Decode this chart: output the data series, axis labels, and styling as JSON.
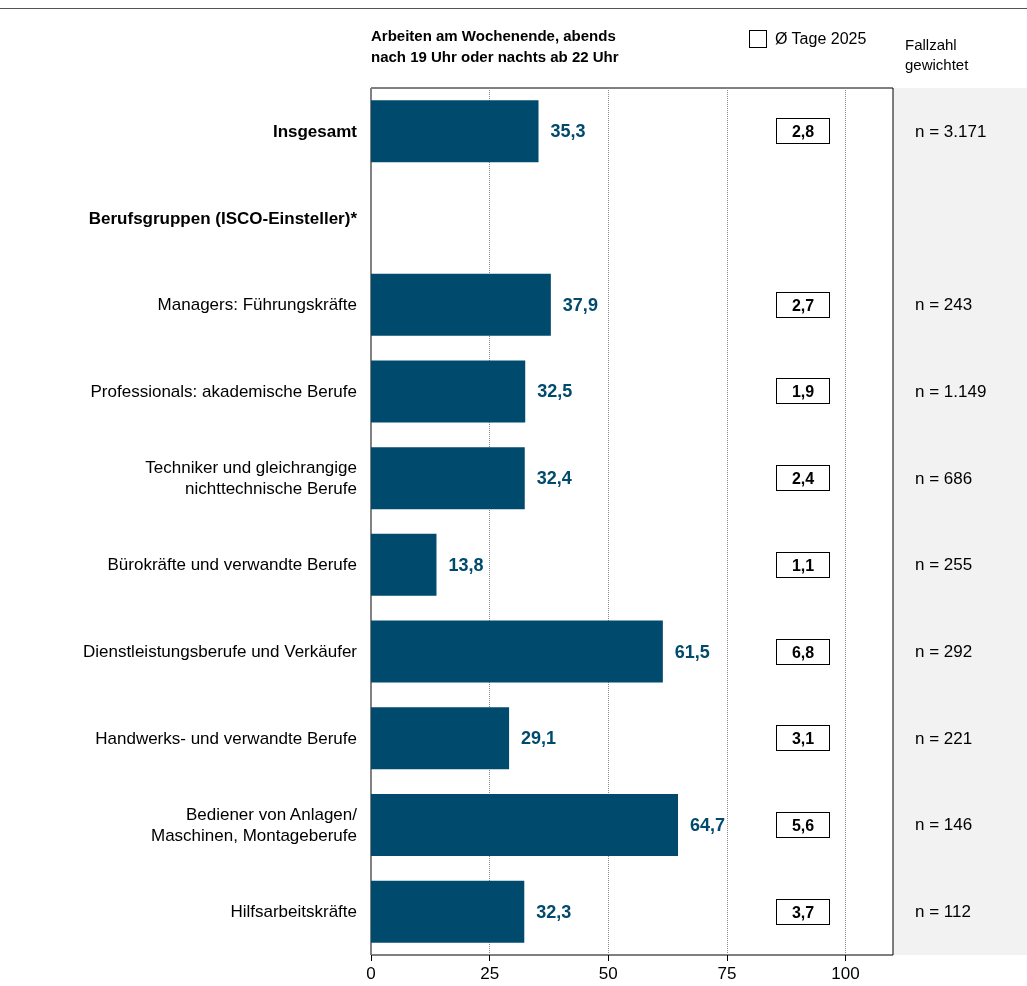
{
  "chart_data": {
    "type": "bar",
    "orientation": "horizontal",
    "title": "Arbeiten am Wochenende, abends\nnach 19 Uhr oder nachts ab 22 Uhr",
    "categories": [
      "Insgesamt",
      "Berufsgruppen (ISCO-Einsteller)*",
      "Managers: Führungskräfte",
      "Professionals: akademische Berufe",
      "Techniker und gleichrangige\nnichttechnische Berufe",
      "Bürokräfte und verwandte Berufe",
      "Dienstleistungsberufe und Verkäufer",
      "Handwerks- und verwandte Berufe",
      "Bediener von Anlagen/\nMaschinen, Montageberufe",
      "Hilfsarbeitskräfte"
    ],
    "values": [
      35.3,
      null,
      37.9,
      32.5,
      32.4,
      13.8,
      61.5,
      29.1,
      64.7,
      32.3
    ],
    "value_labels": [
      "35,3",
      null,
      "37,9",
      "32,5",
      "32,4",
      "13,8",
      "61,5",
      "29,1",
      "64,7",
      "32,3"
    ],
    "color": "#004a6e",
    "xlim": [
      0,
      110
    ],
    "xticks": [
      0,
      25,
      50,
      75,
      100
    ],
    "grid": "x",
    "y2label": "Fallzahl\ngewichtet",
    "y2_categories": [
      "n = 3.171",
      null,
      "n = 243",
      "n = 1.149",
      "n = 686",
      "n = 255",
      "n = 292",
      "n = 221",
      "n = 146",
      "n = 112"
    ],
    "annotations": [
      "Ø Tage 2025",
      "2,8",
      "2,7",
      "1,9",
      "2,4",
      "1,1",
      "6,8",
      "3,1",
      "5,6",
      "3,7"
    ]
  }
}
